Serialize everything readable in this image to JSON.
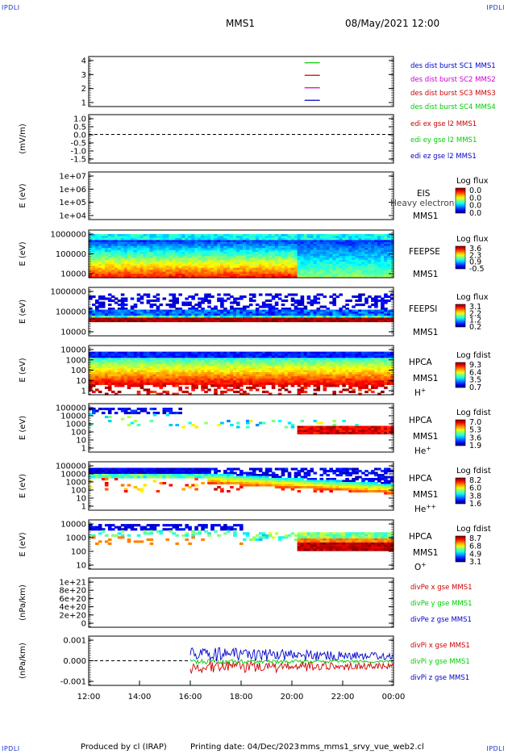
{
  "corners": {
    "label": "IPDLI"
  },
  "header": {
    "spacecraft": "MMS1",
    "datetime": "08/May/2021 12:00"
  },
  "footer": {
    "produced": "Produced by cl (IRAP)",
    "printing": "Printing date: 04/Dec/2023",
    "file": "mms_mms1_srvy_vue_web2.cl"
  },
  "colors": {
    "blue": "#0000cc",
    "red": "#cc0000",
    "magenta": "#cc00cc",
    "green": "#00cc00"
  },
  "x_axis": {
    "tick_labels": [
      "12:00",
      "14:00",
      "16:00",
      "18:00",
      "20:00",
      "22:00",
      "00:00"
    ],
    "range_hours": [
      12,
      24
    ]
  },
  "chart_data": [
    {
      "type": "line",
      "id": "des-dist",
      "yticks": [
        "4",
        "3",
        "2",
        "1"
      ],
      "ylim": [
        0.5,
        4.5
      ],
      "series": [
        {
          "name": "des dist burst SC1 MMS1",
          "color": "#0000cc",
          "y": 1,
          "x": [
            20.5,
            21.1
          ]
        },
        {
          "name": "des dist burst SC2 MMS2",
          "color": "#cc00cc",
          "y": 2,
          "x": [
            20.5,
            21.1
          ]
        },
        {
          "name": "des dist burst SC3 MMS3",
          "color": "#cc0000",
          "y": 3,
          "x": [
            20.5,
            21.1
          ]
        },
        {
          "name": "des dist burst SC4 MMS4",
          "color": "#00cc00",
          "y": 4,
          "x": [
            20.5,
            21.1
          ]
        }
      ]
    },
    {
      "type": "line",
      "id": "edi-e",
      "ylabel": "(mV/m)",
      "yticks": [
        "1.0",
        "0.5",
        "0.0",
        "-0.5",
        "-1.0",
        "-1.5"
      ],
      "ylim": [
        -1.6,
        1.1
      ],
      "series": [
        {
          "name": "edi ex gse l2 MMS1",
          "color": "#cc0000"
        },
        {
          "name": "edi ey gse l2 MMS1",
          "color": "#00cc00"
        },
        {
          "name": "edi ez gse l2 MMS1",
          "color": "#0000cc"
        }
      ]
    },
    {
      "type": "heatmap",
      "id": "eis",
      "ylabel": "E (eV)",
      "yticks": [
        "1e+07",
        "1e+06",
        "1e+05",
        "1e+04"
      ],
      "instrument": [
        "EIS",
        "MMS1"
      ],
      "overlay_text": "Heavy electron to",
      "colorbar": {
        "title": "Log flux",
        "ticks": [
          "0.0",
          "0.0",
          "0.0",
          "0.0"
        ]
      }
    },
    {
      "type": "heatmap",
      "id": "feeps-e",
      "ylabel": "E (eV)",
      "yticks": [
        "1000000",
        "100000",
        "10000"
      ],
      "instrument": [
        "FEEPSE",
        "MMS1"
      ],
      "colorbar": {
        "title": "Log flux",
        "ticks": [
          "3.6",
          "2.3",
          "0.9",
          "-0.5"
        ]
      }
    },
    {
      "type": "heatmap",
      "id": "feeps-i",
      "ylabel": "E (eV)",
      "yticks": [
        "1000000",
        "100000",
        "10000"
      ],
      "instrument": [
        "FEEPSI",
        "MMS1"
      ],
      "colorbar": {
        "title": "Log flux",
        "ticks": [
          "3.1",
          "2.2",
          "1.2",
          "0.2"
        ]
      }
    },
    {
      "type": "heatmap",
      "id": "hpca-h",
      "ylabel": "E (eV)",
      "yticks": [
        "10000",
        "1000",
        "100",
        "10",
        "1"
      ],
      "instrument": [
        "HPCA",
        "MMS1"
      ],
      "species": "H",
      "charge": "+",
      "colorbar": {
        "title": "Log fdist",
        "ticks": [
          "9.3",
          "6.4",
          "3.5",
          "0.7"
        ]
      }
    },
    {
      "type": "heatmap",
      "id": "hpca-he",
      "ylabel": "E (eV)",
      "yticks": [
        "100000",
        "10000",
        "1000",
        "100",
        "10",
        "1"
      ],
      "instrument": [
        "HPCA",
        "MMS1"
      ],
      "species": "He",
      "charge": "+",
      "colorbar": {
        "title": "Log fdist",
        "ticks": [
          "7.0",
          "5.3",
          "3.6",
          "1.9"
        ]
      }
    },
    {
      "type": "heatmap",
      "id": "hpca-hepp",
      "ylabel": "E (eV)",
      "yticks": [
        "100000",
        "10000",
        "1000",
        "100",
        "10",
        "1"
      ],
      "instrument": [
        "HPCA",
        "MMS1"
      ],
      "species": "He",
      "charge": "++",
      "colorbar": {
        "title": "Log fdist",
        "ticks": [
          "8.2",
          "6.0",
          "3.8",
          "1.6"
        ]
      }
    },
    {
      "type": "heatmap",
      "id": "hpca-o",
      "ylabel": "E (eV)",
      "yticks": [
        "10000",
        "1000",
        "100",
        "10"
      ],
      "instrument": [
        "HPCA",
        "MMS1"
      ],
      "species": "O",
      "charge": "+",
      "colorbar": {
        "title": "Log fdist",
        "ticks": [
          "8.7",
          "6.8",
          "4.9",
          "3.1"
        ]
      }
    },
    {
      "type": "line",
      "id": "divpe",
      "ylabel": "(nPa/km)",
      "yticks": [
        "1e+21",
        "8e+20",
        "6e+20",
        "4e+20",
        "2e+20",
        "0"
      ],
      "ylim": [
        0,
        1.05e+21
      ],
      "series": [
        {
          "name": "divPe x gse MMS1",
          "color": "#cc0000"
        },
        {
          "name": "divPe y gse MMS1",
          "color": "#00cc00"
        },
        {
          "name": "divPe z gse MMS1",
          "color": "#0000cc"
        }
      ]
    },
    {
      "type": "line",
      "id": "divpi",
      "ylabel": "(nPa/km)",
      "yticks": [
        "0.001",
        "0.000",
        "-0.001"
      ],
      "ylim": [
        -0.0022,
        0.0022
      ],
      "series": [
        {
          "name": "divPi x gse MMS1",
          "color": "#cc0000"
        },
        {
          "name": "divPi y gse MMS1",
          "color": "#00cc00"
        },
        {
          "name": "divPi z gse MMS1",
          "color": "#0000cc"
        }
      ]
    }
  ]
}
